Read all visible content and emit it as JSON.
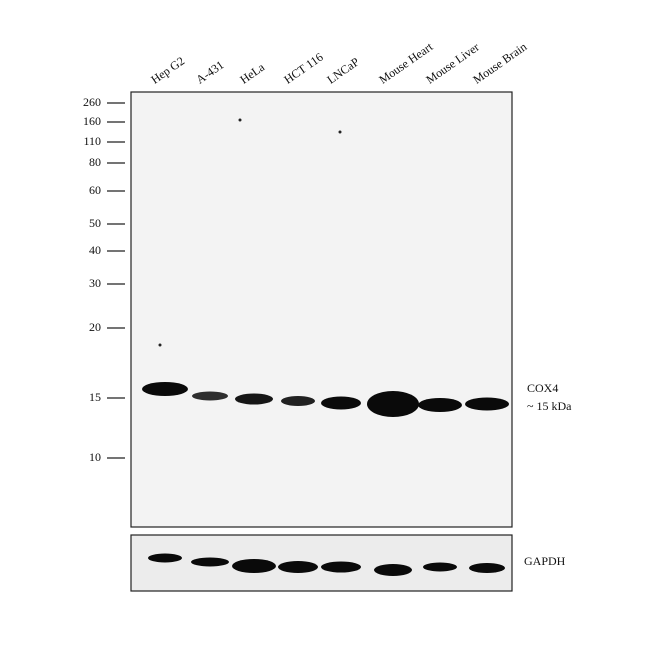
{
  "lanes": [
    "Hep G2",
    "A-431",
    "HeLa",
    "HCT 116",
    "LNCaP",
    "Mouse Heart",
    "Mouse Liver",
    "Mouse Brain"
  ],
  "markers": [
    "260",
    "160",
    "110",
    "80",
    "60",
    "50",
    "40",
    "30",
    "20",
    "15",
    "10"
  ],
  "target": {
    "name": "COX4",
    "size": "~ 15 kDa"
  },
  "loading_control": "GAPDH"
}
